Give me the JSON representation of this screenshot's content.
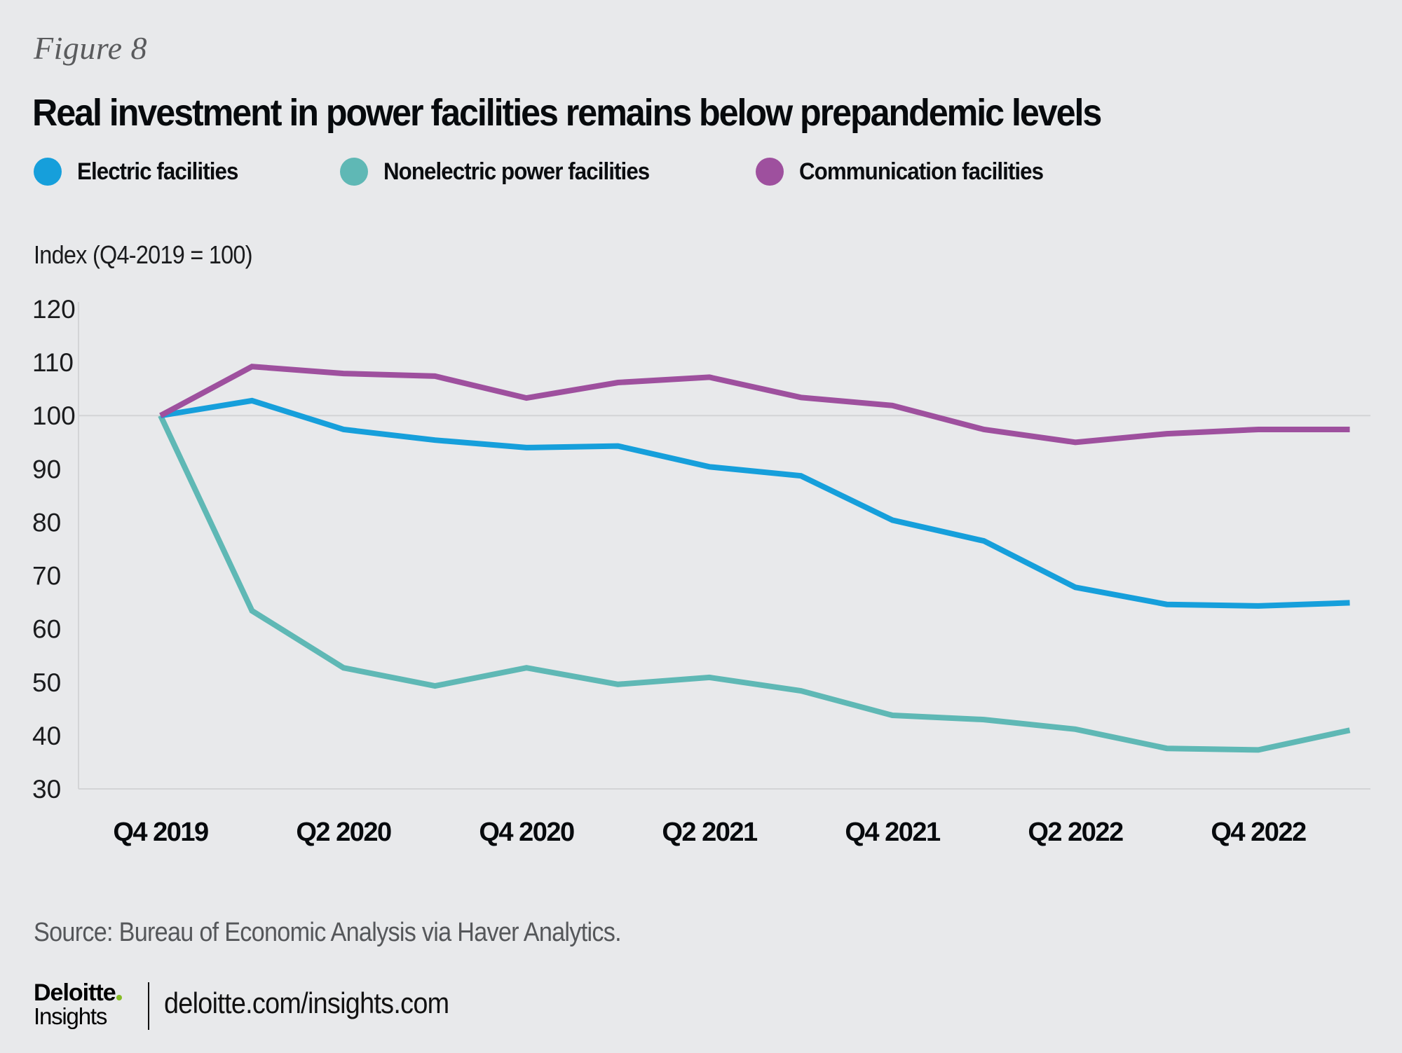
{
  "figure_label": "Figure 8",
  "footer": {
    "source": "Source: Bureau of Economic Analysis via Haver Analytics.",
    "logo_brand": "Deloitte",
    "logo_sub": "Insights",
    "url": "deloitte.com/insights.com"
  },
  "colors": {
    "background": "#e8e9eb",
    "electric": "#169fdb",
    "nonelectric": "#5fb8b5",
    "communication": "#9e509e",
    "gridline": "#d3d4d6",
    "logo_dot": "#86bc25"
  },
  "chart_data": {
    "type": "line",
    "title": "Real investment in power facilities remains below prepandemic levels",
    "ylabel": "Index (Q4-2019 = 100)",
    "xlabel": "",
    "ylim": [
      30,
      120
    ],
    "yticks": [
      120,
      110,
      100,
      90,
      80,
      70,
      60,
      50,
      40,
      30
    ],
    "reference_line": 100,
    "grid": false,
    "legend_position": "top-left",
    "x": [
      "Q4 2019",
      "Q1 2020",
      "Q2 2020",
      "Q3 2020",
      "Q4 2020",
      "Q1 2021",
      "Q2 2021",
      "Q3 2021",
      "Q4 2021",
      "Q1 2022",
      "Q2 2022",
      "Q3 2022",
      "Q4 2022",
      "Q1 2023"
    ],
    "xtick_labels": [
      "Q4 2019",
      "Q2 2020",
      "Q4 2020",
      "Q2 2021",
      "Q4 2021",
      "Q2 2022",
      "Q4 2022"
    ],
    "series": [
      {
        "name": "Electric facilities",
        "color": "#169fdb",
        "values": [
          100,
          102.8,
          97.4,
          95.4,
          94.0,
          94.3,
          90.4,
          88.7,
          80.4,
          76.5,
          67.8,
          64.6,
          64.3,
          64.9
        ]
      },
      {
        "name": "Nonelectric power facilities",
        "color": "#5fb8b5",
        "values": [
          100,
          63.4,
          52.7,
          49.3,
          52.7,
          49.6,
          50.9,
          48.4,
          43.8,
          43.0,
          41.2,
          37.6,
          37.3,
          41.0
        ]
      },
      {
        "name": "Communication facilities",
        "color": "#9e509e",
        "values": [
          100,
          109.2,
          107.9,
          107.4,
          103.3,
          106.2,
          107.2,
          103.4,
          101.9,
          97.4,
          95.0,
          96.6,
          97.4,
          97.4
        ]
      }
    ]
  }
}
